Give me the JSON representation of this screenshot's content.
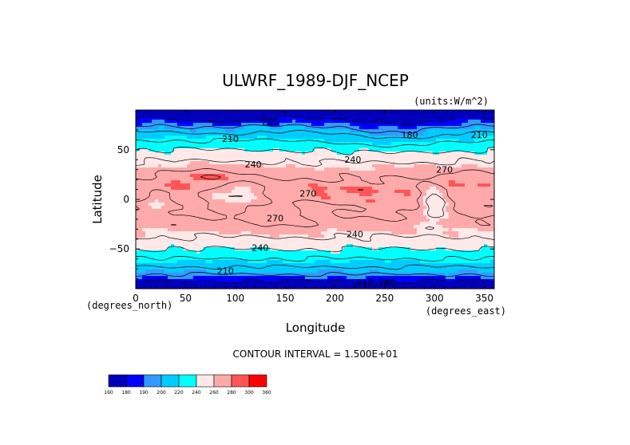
{
  "chart_data": {
    "type": "heatmap",
    "title": "ULWRF_1989-DJF_NCEP",
    "units_note": "(units:W/m^2)",
    "xlabel": "Longitude",
    "ylabel": "Latitude",
    "x_unit_note": "(degrees_east)",
    "y_unit_note": "(degrees_north)",
    "xlim": [
      0,
      360
    ],
    "ylim": [
      -90,
      90
    ],
    "x_ticks": [
      0,
      50,
      100,
      150,
      200,
      250,
      300,
      350
    ],
    "y_ticks": [
      -50,
      0,
      50
    ],
    "contour_interval_text": "CONTOUR INTERVAL = 1.500E+01",
    "contour_labels": [
      {
        "text": "210",
        "lon": 135,
        "lat": 75
      },
      {
        "text": "210",
        "lon": 95,
        "lat": 58
      },
      {
        "text": "180",
        "lon": 275,
        "lat": 62
      },
      {
        "text": "210",
        "lon": 345,
        "lat": 62
      },
      {
        "text": "240",
        "lon": 118,
        "lat": 32
      },
      {
        "text": "240",
        "lon": 218,
        "lat": 37
      },
      {
        "text": "270",
        "lon": 310,
        "lat": 27
      },
      {
        "text": "270",
        "lon": 173,
        "lat": 3
      },
      {
        "text": "270",
        "lon": 140,
        "lat": -22
      },
      {
        "text": "240",
        "lon": 125,
        "lat": -52
      },
      {
        "text": "240",
        "lon": 220,
        "lat": -38
      },
      {
        "text": "210",
        "lon": 90,
        "lat": -75
      },
      {
        "text": "180",
        "lon": 252,
        "lat": -102
      },
      {
        "text": "210",
        "lon": 230,
        "lat": -92
      }
    ],
    "colorbar": {
      "levels": [
        160,
        180,
        190,
        200,
        220,
        240,
        260,
        280,
        300,
        360
      ],
      "colors": [
        "#0000bb",
        "#0000ff",
        "#3399ff",
        "#00ccff",
        "#00ffff",
        "#ffe8e8",
        "#ffaaaa",
        "#ff5555",
        "#ff0000"
      ]
    }
  }
}
